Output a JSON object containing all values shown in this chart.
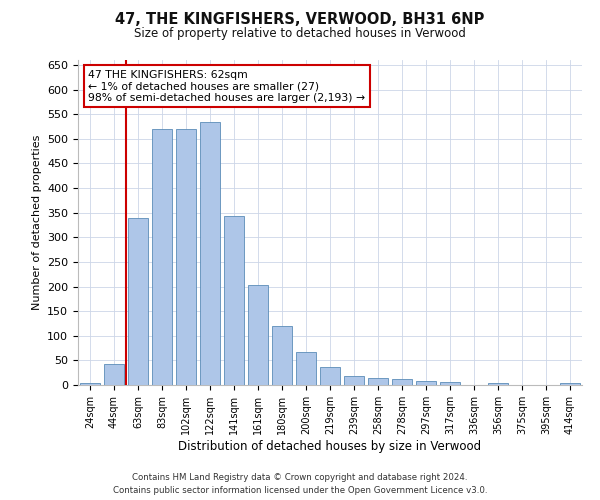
{
  "title": "47, THE KINGFISHERS, VERWOOD, BH31 6NP",
  "subtitle": "Size of property relative to detached houses in Verwood",
  "xlabel": "Distribution of detached houses by size in Verwood",
  "ylabel": "Number of detached properties",
  "bar_color": "#aec6e8",
  "bar_edge_color": "#5b8db8",
  "categories": [
    "24sqm",
    "44sqm",
    "63sqm",
    "83sqm",
    "102sqm",
    "122sqm",
    "141sqm",
    "161sqm",
    "180sqm",
    "200sqm",
    "219sqm",
    "239sqm",
    "258sqm",
    "278sqm",
    "297sqm",
    "317sqm",
    "336sqm",
    "356sqm",
    "375sqm",
    "395sqm",
    "414sqm"
  ],
  "values": [
    5,
    42,
    340,
    519,
    519,
    535,
    343,
    204,
    120,
    68,
    37,
    18,
    14,
    13,
    9,
    6,
    0,
    5,
    0,
    0,
    5
  ],
  "ylim": [
    0,
    660
  ],
  "yticks": [
    0,
    50,
    100,
    150,
    200,
    250,
    300,
    350,
    400,
    450,
    500,
    550,
    600,
    650
  ],
  "vline_color": "#cc0000",
  "vline_x_index": 1.5,
  "annotation_box_text": "47 THE KINGFISHERS: 62sqm\n← 1% of detached houses are smaller (27)\n98% of semi-detached houses are larger (2,193) →",
  "footer_line1": "Contains HM Land Registry data © Crown copyright and database right 2024.",
  "footer_line2": "Contains public sector information licensed under the Open Government Licence v3.0.",
  "bg_color": "#ffffff",
  "grid_color": "#ccd6e8"
}
